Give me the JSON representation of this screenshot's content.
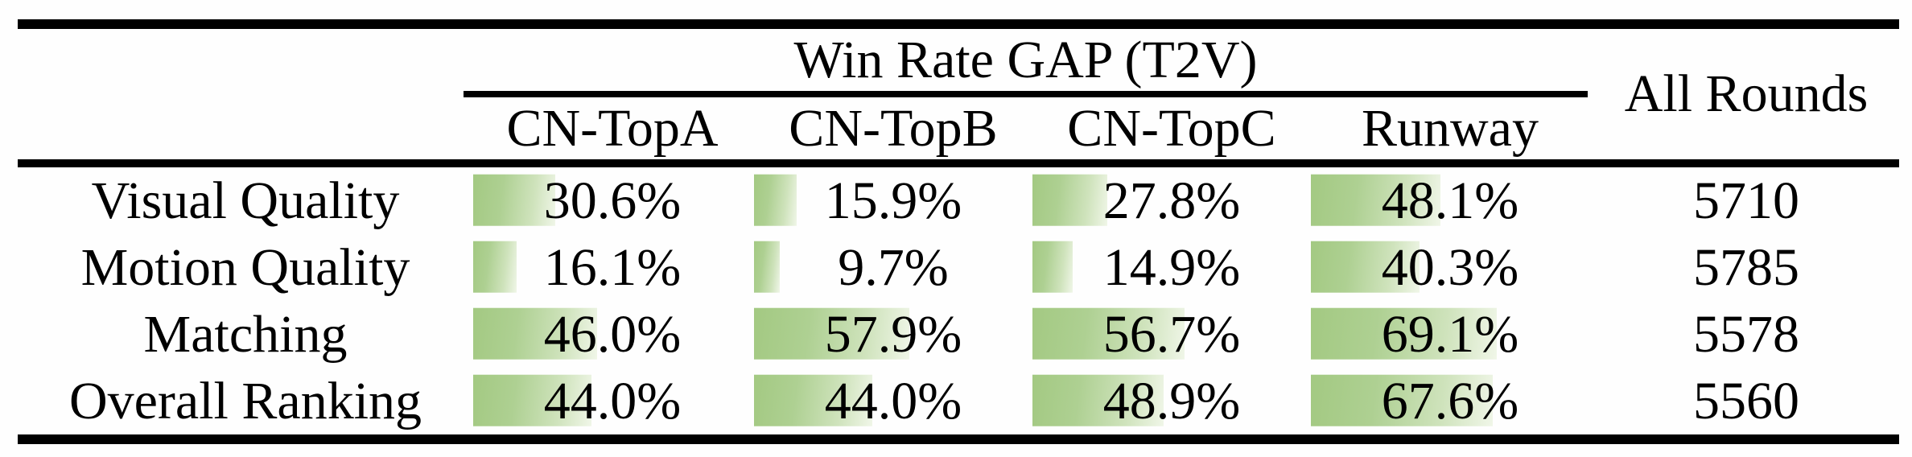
{
  "table": {
    "title": "Win Rate GAP (T2V)",
    "all_rounds_header": "All Rounds",
    "columns": [
      "CN-TopA",
      "CN-TopB",
      "CN-TopC",
      "Runway"
    ],
    "rows": [
      {
        "label": "Visual Quality",
        "cells": [
          {
            "text": "30.6%",
            "pct": 30.6
          },
          {
            "text": "15.9%",
            "pct": 15.9
          },
          {
            "text": "27.8%",
            "pct": 27.8
          },
          {
            "text": "48.1%",
            "pct": 48.1
          }
        ],
        "all_rounds": "5710"
      },
      {
        "label": "Motion Quality",
        "cells": [
          {
            "text": "16.1%",
            "pct": 16.1
          },
          {
            "text": "9.7%",
            "pct": 9.7
          },
          {
            "text": "14.9%",
            "pct": 14.9
          },
          {
            "text": "40.3%",
            "pct": 40.3
          }
        ],
        "all_rounds": "5785"
      },
      {
        "label": "Matching",
        "cells": [
          {
            "text": "46.0%",
            "pct": 46.0
          },
          {
            "text": "57.9%",
            "pct": 57.9
          },
          {
            "text": "56.7%",
            "pct": 56.7
          },
          {
            "text": "69.1%",
            "pct": 69.1
          }
        ],
        "all_rounds": "5578"
      },
      {
        "label": "Overall Ranking",
        "cells": [
          {
            "text": "44.0%",
            "pct": 44.0
          },
          {
            "text": "44.0%",
            "pct": 44.0
          },
          {
            "text": "48.9%",
            "pct": 48.9
          },
          {
            "text": "67.6%",
            "pct": 67.6
          }
        ],
        "all_rounds": "5560"
      }
    ],
    "colors": {
      "bar_green": "#a3c982",
      "bar_fade": "#f0f6e8",
      "rule_black": "#000000"
    }
  },
  "chart_data": {
    "type": "table",
    "title": "Win Rate GAP (T2V)",
    "categories": [
      "Visual Quality",
      "Motion Quality",
      "Matching",
      "Overall Ranking"
    ],
    "series": [
      {
        "name": "CN-TopA",
        "values": [
          30.6,
          16.1,
          46.0,
          44.0
        ]
      },
      {
        "name": "CN-TopB",
        "values": [
          15.9,
          9.7,
          57.9,
          44.0
        ]
      },
      {
        "name": "CN-TopC",
        "values": [
          27.8,
          14.9,
          56.7,
          48.9
        ]
      },
      {
        "name": "Runway",
        "values": [
          48.1,
          40.3,
          69.1,
          67.6
        ]
      }
    ],
    "extra_column": {
      "name": "All Rounds",
      "values": [
        5710,
        5785,
        5578,
        5560
      ]
    },
    "unit": "%",
    "bar_range": [
      0,
      100
    ],
    "notes": "in-cell gradient data bars, width proportional to percent"
  }
}
